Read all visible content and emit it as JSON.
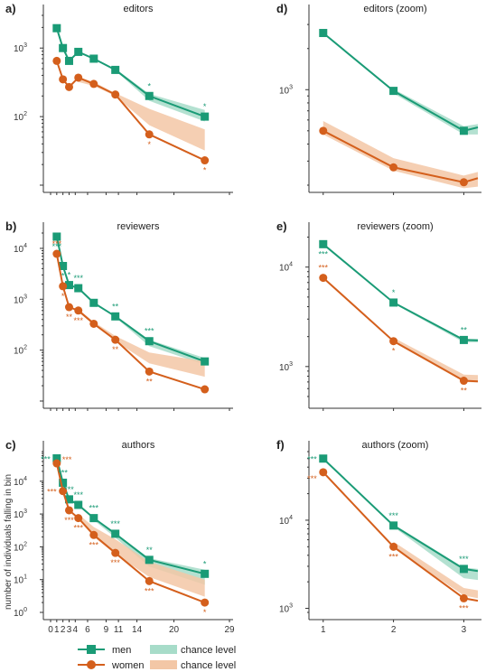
{
  "colors": {
    "men": "#1a9b76",
    "women": "#d45f1c",
    "men_band": "#a7dcc9",
    "women_band": "#f3c7a6"
  },
  "ylabel": "number of individuals falling in bin",
  "legend": {
    "men": "men",
    "women": "women",
    "men_chance": "chance level",
    "women_chance": "chance level"
  },
  "chart_data": [
    {
      "id": "a",
      "type": "line",
      "label": "a)",
      "title": "editors",
      "yscale": "log",
      "ylim": [
        10,
        3000
      ],
      "xlim": [
        0,
        29
      ],
      "xticks": [
        0,
        1,
        2,
        3,
        4,
        6,
        9,
        11,
        14,
        20,
        29
      ],
      "xtick_labels": [],
      "yticks": [
        {
          "v": 100,
          "base": "10",
          "exp": "2"
        },
        {
          "v": 1000,
          "base": "10",
          "exp": "3"
        }
      ],
      "series": [
        {
          "name": "men",
          "key": "men",
          "x": [
            1,
            2,
            3,
            4.5,
            7,
            10.5,
            16,
            25
          ],
          "y": [
            1950,
            1000,
            650,
            880,
            700,
            480,
            200,
            100
          ],
          "band_x": [
            10.5,
            16,
            25
          ],
          "band_lo": [
            470,
            170,
            85
          ],
          "band_hi": [
            500,
            215,
            125
          ],
          "sig": [
            {
              "x": 16,
              "text": "*",
              "pos": "above"
            },
            {
              "x": 25,
              "text": "*",
              "pos": "above"
            }
          ]
        },
        {
          "name": "women",
          "key": "women",
          "x": [
            1,
            2,
            3,
            4.5,
            7,
            10.5,
            16,
            25
          ],
          "y": [
            650,
            350,
            270,
            370,
            300,
            210,
            55,
            23
          ],
          "band_x": [
            4.5,
            7,
            10.5,
            16,
            25
          ],
          "band_lo": [
            320,
            280,
            200,
            75,
            32
          ],
          "band_hi": [
            380,
            320,
            220,
            130,
            65
          ],
          "sig": [
            {
              "x": 16,
              "text": "*",
              "pos": "below"
            },
            {
              "x": 25,
              "text": "*",
              "pos": "below"
            }
          ]
        }
      ]
    },
    {
      "id": "d",
      "type": "line",
      "label": "d)",
      "title": "editors (zoom)",
      "yscale": "log",
      "ylim": [
        200,
        3500
      ],
      "xlim": [
        0.9,
        3.2
      ],
      "xticks": [
        1,
        2,
        3
      ],
      "xtick_labels": [],
      "yticks": [
        {
          "v": 1000,
          "base": "10",
          "exp": "3"
        }
      ],
      "series": [
        {
          "name": "men",
          "key": "men",
          "x": [
            1,
            2,
            3,
            3.2
          ],
          "y": [
            2600,
            980,
            500,
            530
          ],
          "band_x": [
            2,
            3,
            3.2
          ],
          "band_lo": [
            940,
            470,
            470
          ],
          "band_hi": [
            1010,
            540,
            560
          ],
          "sig": []
        },
        {
          "name": "women",
          "key": "women",
          "x": [
            1,
            2,
            3,
            3.2
          ],
          "y": [
            500,
            270,
            210,
            225
          ],
          "band_x": [
            1,
            2,
            3,
            3.2
          ],
          "band_lo": [
            470,
            255,
            190,
            195
          ],
          "band_hi": [
            590,
            315,
            235,
            250
          ],
          "sig": []
        }
      ]
    },
    {
      "id": "b",
      "type": "line",
      "label": "b)",
      "title": "reviewers",
      "yscale": "log",
      "ylim": [
        10,
        20000
      ],
      "xlim": [
        0,
        29
      ],
      "xticks": [
        0,
        1,
        2,
        3,
        4,
        6,
        9,
        11,
        14,
        20,
        29
      ],
      "xtick_labels": [],
      "yticks": [
        {
          "v": 100,
          "base": "10",
          "exp": "2"
        },
        {
          "v": 1000,
          "base": "10",
          "exp": "3"
        },
        {
          "v": 10000,
          "base": "10",
          "exp": "4"
        }
      ],
      "series": [
        {
          "name": "men",
          "key": "men",
          "x": [
            1,
            2,
            3,
            4.5,
            7,
            10.5,
            16,
            25
          ],
          "y": [
            17000,
            4500,
            1900,
            1650,
            850,
            460,
            150,
            60
          ],
          "band_x": [
            10.5,
            16,
            25
          ],
          "band_lo": [
            440,
            120,
            52
          ],
          "band_hi": [
            480,
            160,
            70
          ],
          "sig": [
            {
              "x": 1,
              "text": "***",
              "pos": "below"
            },
            {
              "x": 2,
              "text": "*",
              "pos": "below"
            },
            {
              "x": 3,
              "text": "*",
              "pos": "above"
            },
            {
              "x": 4.5,
              "text": "***",
              "pos": "above"
            },
            {
              "x": 10.5,
              "text": "**",
              "pos": "above"
            },
            {
              "x": 16,
              "text": "***",
              "pos": "above"
            }
          ]
        },
        {
          "name": "women",
          "key": "women",
          "x": [
            1,
            2,
            3,
            4.5,
            7,
            10.5,
            16,
            25
          ],
          "y": [
            7800,
            1800,
            700,
            600,
            330,
            160,
            38,
            17
          ],
          "band_x": [
            4.5,
            7,
            10.5,
            16,
            25
          ],
          "band_lo": [
            560,
            320,
            150,
            55,
            30
          ],
          "band_hi": [
            640,
            360,
            190,
            90,
            60
          ],
          "sig": [
            {
              "x": 1,
              "text": "***",
              "pos": "above"
            },
            {
              "x": 2,
              "text": "*",
              "pos": "below"
            },
            {
              "x": 3,
              "text": "**",
              "pos": "below"
            },
            {
              "x": 4.5,
              "text": "***",
              "pos": "below"
            },
            {
              "x": 10.5,
              "text": "**",
              "pos": "below"
            },
            {
              "x": 16,
              "text": "**",
              "pos": "below"
            }
          ]
        }
      ]
    },
    {
      "id": "e",
      "type": "line",
      "label": "e)",
      "title": "reviewers (zoom)",
      "yscale": "log",
      "ylim": [
        450,
        22000
      ],
      "xlim": [
        0.9,
        3.2
      ],
      "xticks": [
        1,
        2,
        3
      ],
      "xtick_labels": [],
      "yticks": [
        {
          "v": 1000,
          "base": "10",
          "exp": "3"
        },
        {
          "v": 10000,
          "base": "10",
          "exp": "4"
        }
      ],
      "series": [
        {
          "name": "men",
          "key": "men",
          "x": [
            1,
            2,
            3,
            3.2
          ],
          "y": [
            17000,
            4400,
            1850,
            1830
          ],
          "band_x": [
            2,
            3,
            3.2
          ],
          "band_lo": [
            4300,
            1750,
            1750
          ],
          "band_hi": [
            4500,
            1900,
            1900
          ],
          "sig": [
            {
              "x": 1,
              "text": "***",
              "pos": "below"
            },
            {
              "x": 2,
              "text": "*",
              "pos": "above"
            },
            {
              "x": 3,
              "text": "**",
              "pos": "above"
            }
          ]
        },
        {
          "name": "women",
          "key": "women",
          "x": [
            1,
            2,
            3,
            3.2
          ],
          "y": [
            7800,
            1800,
            720,
            710
          ],
          "band_x": [
            2,
            3,
            3.2
          ],
          "band_lo": [
            1750,
            700,
            690
          ],
          "band_hi": [
            1950,
            830,
            820
          ],
          "sig": [
            {
              "x": 1,
              "text": "***",
              "pos": "above"
            },
            {
              "x": 2,
              "text": "*",
              "pos": "below"
            },
            {
              "x": 3,
              "text": "**",
              "pos": "below"
            }
          ]
        }
      ]
    },
    {
      "id": "c",
      "type": "line",
      "label": "c)",
      "title": "authors",
      "yscale": "log",
      "ylim": [
        1,
        80000
      ],
      "xlim": [
        0,
        29
      ],
      "xticks": [
        0,
        1,
        2,
        3,
        4,
        6,
        9,
        11,
        14,
        20,
        29
      ],
      "xtick_labels": [
        "0",
        "1",
        "2",
        "3",
        "4",
        "6",
        "9",
        "11",
        "14",
        "20",
        "29"
      ],
      "yticks": [
        {
          "v": 1,
          "base": "10",
          "exp": "0"
        },
        {
          "v": 10,
          "base": "10",
          "exp": "1"
        },
        {
          "v": 100,
          "base": "10",
          "exp": "2"
        },
        {
          "v": 1000,
          "base": "10",
          "exp": "3"
        },
        {
          "v": 10000,
          "base": "10",
          "exp": "4"
        }
      ],
      "series": [
        {
          "name": "men",
          "key": "men",
          "x": [
            1,
            2,
            3,
            4.5,
            7,
            10.5,
            16,
            25
          ],
          "y": [
            50000,
            9000,
            2800,
            1900,
            750,
            250,
            40,
            15
          ],
          "band_x": [
            7,
            10.5,
            16,
            25
          ],
          "band_lo": [
            650,
            190,
            25,
            7
          ],
          "band_hi": [
            800,
            260,
            45,
            20
          ],
          "sig": [
            {
              "x": 1,
              "text": "***",
              "pos": "left"
            },
            {
              "x": 2,
              "text": "***",
              "pos": "above"
            },
            {
              "x": 3,
              "text": "***",
              "pos": "above"
            },
            {
              "x": 4.5,
              "text": "***",
              "pos": "above"
            },
            {
              "x": 7,
              "text": "***",
              "pos": "above"
            },
            {
              "x": 10.5,
              "text": "***",
              "pos": "above"
            },
            {
              "x": 16,
              "text": "**",
              "pos": "above"
            },
            {
              "x": 25,
              "text": "*",
              "pos": "above"
            }
          ]
        },
        {
          "name": "women",
          "key": "women",
          "x": [
            1,
            2,
            3,
            4.5,
            7,
            10.5,
            16,
            25
          ],
          "y": [
            35000,
            5000,
            1300,
            750,
            230,
            65,
            9,
            2
          ],
          "band_x": [
            4.5,
            7,
            10.5,
            16,
            25
          ],
          "band_lo": [
            700,
            200,
            60,
            12,
            3
          ],
          "band_hi": [
            1000,
            400,
            170,
            35,
            10
          ],
          "sig": [
            {
              "x": 1,
              "text": "***",
              "pos": "aboveright"
            },
            {
              "x": 2,
              "text": "***",
              "pos": "left"
            },
            {
              "x": 3,
              "text": "***",
              "pos": "below"
            },
            {
              "x": 4.5,
              "text": "***",
              "pos": "below"
            },
            {
              "x": 7,
              "text": "***",
              "pos": "below"
            },
            {
              "x": 10.5,
              "text": "***",
              "pos": "below"
            },
            {
              "x": 16,
              "text": "***",
              "pos": "below"
            },
            {
              "x": 25,
              "text": "*",
              "pos": "below"
            }
          ]
        }
      ]
    },
    {
      "id": "f",
      "type": "line",
      "label": "f)",
      "title": "authors (zoom)",
      "yscale": "log",
      "ylim": [
        900,
        60000
      ],
      "xlim": [
        0.9,
        3.2
      ],
      "xticks": [
        1,
        2,
        3
      ],
      "xtick_labels": [
        "1",
        "2",
        "3"
      ],
      "yticks": [
        {
          "v": 1000,
          "base": "10",
          "exp": "3"
        },
        {
          "v": 10000,
          "base": "10",
          "exp": "4"
        }
      ],
      "series": [
        {
          "name": "men",
          "key": "men",
          "x": [
            1,
            2,
            3,
            3.2
          ],
          "y": [
            50000,
            8700,
            2800,
            2650
          ],
          "band_x": [
            2,
            3,
            3.2
          ],
          "band_lo": [
            8400,
            2200,
            2100
          ],
          "band_hi": [
            9000,
            2900,
            2800
          ],
          "sig": [
            {
              "x": 1,
              "text": "***",
              "pos": "left"
            },
            {
              "x": 2,
              "text": "***",
              "pos": "above"
            },
            {
              "x": 3,
              "text": "***",
              "pos": "above"
            }
          ]
        },
        {
          "name": "women",
          "key": "women",
          "x": [
            1,
            2,
            3,
            3.2
          ],
          "y": [
            35000,
            5000,
            1300,
            1220
          ],
          "band_x": [
            2,
            3,
            3.2
          ],
          "band_lo": [
            4800,
            1400,
            1300
          ],
          "band_hi": [
            5700,
            1700,
            1600
          ],
          "sig": [
            {
              "x": 1,
              "text": "***",
              "pos": "leftlow"
            },
            {
              "x": 2,
              "text": "***",
              "pos": "below"
            },
            {
              "x": 3,
              "text": "***",
              "pos": "below"
            }
          ]
        }
      ]
    }
  ]
}
